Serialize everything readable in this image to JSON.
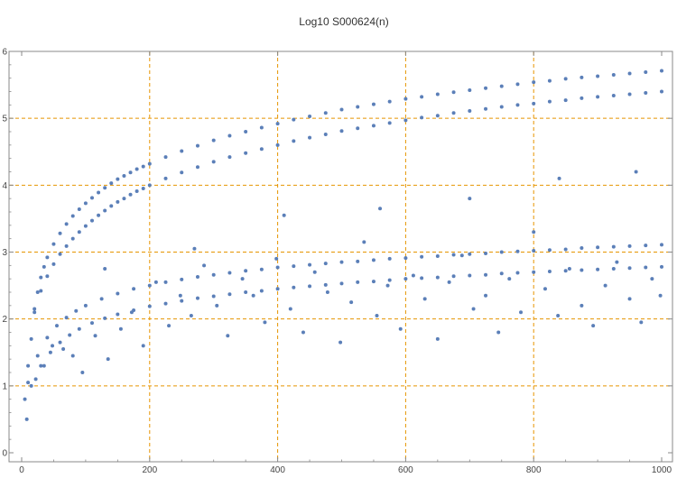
{
  "chart_data": {
    "type": "scatter",
    "title": "Log10 S000624(n)",
    "xlabel": "",
    "ylabel": "",
    "xlim": [
      0,
      1000
    ],
    "ylim": [
      0,
      6
    ],
    "x_ticks": [
      0,
      200,
      400,
      600,
      800,
      1000
    ],
    "x_tick_labels": [
      "0",
      "200",
      "400",
      "600",
      "800",
      "1000"
    ],
    "y_ticks": [
      0,
      1,
      2,
      3,
      4,
      5,
      6
    ],
    "y_tick_labels": [
      "0",
      "1",
      "2",
      "3",
      "4",
      "5",
      "6"
    ],
    "grid_x": [
      200,
      400,
      600,
      800
    ],
    "grid_y": [
      1,
      2,
      3,
      4,
      5
    ],
    "grid": true,
    "colors": {
      "points": "#5b7fb8",
      "grid": "#e69500",
      "axis": "#888888"
    },
    "series": [
      {
        "x": [
          5,
          10,
          15,
          20,
          25,
          30,
          35,
          40,
          50,
          60,
          70,
          80,
          90,
          100,
          110,
          120,
          130,
          140,
          150,
          160,
          170,
          180,
          190,
          200,
          225,
          250,
          275,
          300,
          325,
          350,
          375,
          400,
          425,
          450,
          475,
          500,
          525,
          550,
          575,
          600,
          625,
          650,
          675,
          700,
          725,
          750,
          775,
          800,
          825,
          850,
          875,
          900,
          925,
          950,
          975,
          1000
        ],
        "y": [
          0.8,
          1.3,
          1.7,
          2.1,
          2.4,
          2.62,
          2.78,
          2.92,
          3.12,
          3.28,
          3.42,
          3.54,
          3.64,
          3.73,
          3.81,
          3.89,
          3.96,
          4.03,
          4.09,
          4.14,
          4.19,
          4.24,
          4.28,
          4.32,
          4.42,
          4.51,
          4.59,
          4.67,
          4.74,
          4.8,
          4.86,
          4.92,
          4.98,
          5.03,
          5.08,
          5.13,
          5.17,
          5.21,
          5.25,
          5.29,
          5.32,
          5.36,
          5.39,
          5.42,
          5.45,
          5.48,
          5.51,
          5.54,
          5.56,
          5.59,
          5.61,
          5.63,
          5.65,
          5.67,
          5.69,
          5.71
        ]
      },
      {
        "x": [
          20,
          30,
          40,
          50,
          60,
          70,
          80,
          90,
          100,
          110,
          120,
          130,
          140,
          150,
          160,
          170,
          180,
          190,
          200,
          225,
          250,
          275,
          300,
          325,
          350,
          375,
          400,
          425,
          450,
          475,
          500,
          525,
          550,
          575,
          600,
          625,
          650,
          675,
          700,
          725,
          750,
          775,
          800,
          825,
          850,
          875,
          900,
          925,
          950,
          975,
          1000
        ],
        "y": [
          2.15,
          2.42,
          2.64,
          2.82,
          2.97,
          3.09,
          3.2,
          3.3,
          3.39,
          3.47,
          3.55,
          3.62,
          3.69,
          3.75,
          3.8,
          3.86,
          3.91,
          3.95,
          4.0,
          4.1,
          4.19,
          4.27,
          4.35,
          4.42,
          4.48,
          4.54,
          4.6,
          4.66,
          4.71,
          4.76,
          4.81,
          4.85,
          4.89,
          4.93,
          4.97,
          5.01,
          5.04,
          5.08,
          5.11,
          5.14,
          5.17,
          5.2,
          5.22,
          5.25,
          5.27,
          5.3,
          5.32,
          5.34,
          5.36,
          5.38,
          5.4
        ]
      },
      {
        "x": [
          10,
          25,
          40,
          55,
          70,
          85,
          100,
          125,
          150,
          175,
          200,
          225,
          250,
          275,
          300,
          325,
          350,
          375,
          400,
          425,
          450,
          475,
          500,
          525,
          550,
          575,
          600,
          625,
          650,
          675,
          700,
          725,
          750,
          775,
          800,
          825,
          850,
          875,
          900,
          925,
          950,
          975,
          1000
        ],
        "y": [
          1.05,
          1.45,
          1.72,
          1.9,
          2.02,
          2.12,
          2.2,
          2.3,
          2.38,
          2.45,
          2.5,
          2.55,
          2.59,
          2.63,
          2.66,
          2.69,
          2.72,
          2.74,
          2.77,
          2.79,
          2.81,
          2.83,
          2.85,
          2.86,
          2.88,
          2.9,
          2.91,
          2.93,
          2.94,
          2.96,
          2.97,
          2.98,
          3.0,
          3.01,
          3.02,
          3.03,
          3.04,
          3.06,
          3.07,
          3.08,
          3.09,
          3.1,
          3.11
        ]
      },
      {
        "x": [
          15,
          30,
          45,
          60,
          75,
          90,
          110,
          130,
          150,
          175,
          200,
          225,
          250,
          275,
          300,
          325,
          350,
          375,
          400,
          425,
          450,
          475,
          500,
          525,
          550,
          575,
          600,
          625,
          650,
          675,
          700,
          725,
          750,
          775,
          800,
          825,
          850,
          875,
          900,
          925,
          950,
          975,
          1000
        ],
        "y": [
          1.0,
          1.3,
          1.5,
          1.65,
          1.76,
          1.85,
          1.94,
          2.01,
          2.07,
          2.13,
          2.19,
          2.23,
          2.27,
          2.31,
          2.34,
          2.37,
          2.4,
          2.42,
          2.45,
          2.47,
          2.49,
          2.51,
          2.53,
          2.55,
          2.56,
          2.58,
          2.6,
          2.61,
          2.62,
          2.64,
          2.65,
          2.66,
          2.68,
          2.69,
          2.7,
          2.71,
          2.72,
          2.73,
          2.74,
          2.75,
          2.76,
          2.77,
          2.78
        ]
      },
      {
        "x": [
          8,
          22,
          35,
          48,
          65,
          80,
          95,
          115,
          135,
          155,
          172,
          190,
          210,
          230,
          248,
          265,
          285,
          305,
          322,
          345,
          362,
          380,
          398,
          420,
          440,
          458,
          478,
          498,
          515,
          535,
          555,
          572,
          592,
          612,
          630,
          650,
          668,
          688,
          706,
          725,
          745,
          762,
          780,
          800,
          818,
          838,
          856,
          875,
          893,
          912,
          930,
          950,
          968,
          985,
          998,
          130,
          270,
          410,
          560,
          700,
          840,
          960
        ],
        "y": [
          0.5,
          1.1,
          1.3,
          1.6,
          1.55,
          1.45,
          1.2,
          1.75,
          1.4,
          1.85,
          2.1,
          1.6,
          2.55,
          1.9,
          2.35,
          2.05,
          2.8,
          2.2,
          1.75,
          2.6,
          2.35,
          1.95,
          2.9,
          2.15,
          1.8,
          2.7,
          2.4,
          1.65,
          2.25,
          3.15,
          2.05,
          2.5,
          1.85,
          2.65,
          2.3,
          1.7,
          2.55,
          2.95,
          2.15,
          2.35,
          1.8,
          2.6,
          2.1,
          3.3,
          2.45,
          2.05,
          2.75,
          2.2,
          1.9,
          2.5,
          2.85,
          2.3,
          1.95,
          2.6,
          2.35,
          2.75,
          3.05,
          3.55,
          3.65,
          3.8,
          4.1,
          4.2
        ]
      }
    ]
  }
}
